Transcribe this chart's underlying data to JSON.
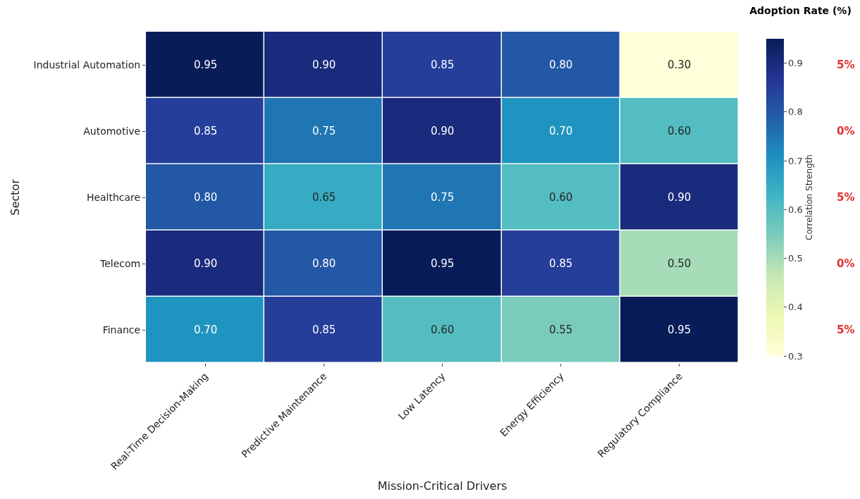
{
  "chart_data": {
    "type": "heatmap",
    "title": "Adoption Rate (%)",
    "xlabel": "Mission-Critical Drivers",
    "ylabel": "Sector",
    "clabel": "Correlation Strength",
    "categories": [
      "Real-Time Decision-Making",
      "Predictive Maintenance",
      "Low Latency",
      "Energy Efficiency",
      "Regulatory Compliance"
    ],
    "y_categories": [
      "Industrial Automation",
      "Automotive",
      "Healthcare",
      "Telecom",
      "Finance"
    ],
    "cells": [
      [
        0.95,
        0.9,
        0.85,
        0.8,
        0.3
      ],
      [
        0.85,
        0.75,
        0.9,
        0.7,
        0.6
      ],
      [
        0.8,
        0.65,
        0.75,
        0.6,
        0.9
      ],
      [
        0.9,
        0.8,
        0.95,
        0.85,
        0.5
      ],
      [
        0.7,
        0.85,
        0.6,
        0.55,
        0.95
      ]
    ],
    "clim": [
      0.3,
      0.95
    ],
    "cticks": [
      0.3,
      0.4,
      0.5,
      0.6,
      0.7,
      0.8,
      0.9
    ],
    "cell_labels": [
      [
        "0.95",
        "0.90",
        "0.85",
        "0.80",
        "0.30"
      ],
      [
        "0.85",
        "0.75",
        "0.90",
        "0.70",
        "0.60"
      ],
      [
        "0.80",
        "0.65",
        "0.75",
        "0.60",
        "0.90"
      ],
      [
        "0.90",
        "0.80",
        "0.95",
        "0.85",
        "0.50"
      ],
      [
        "0.70",
        "0.85",
        "0.60",
        "0.55",
        "0.95"
      ]
    ],
    "annotations": [
      "5%",
      "0%",
      "5%",
      "0%",
      "5%"
    ]
  }
}
